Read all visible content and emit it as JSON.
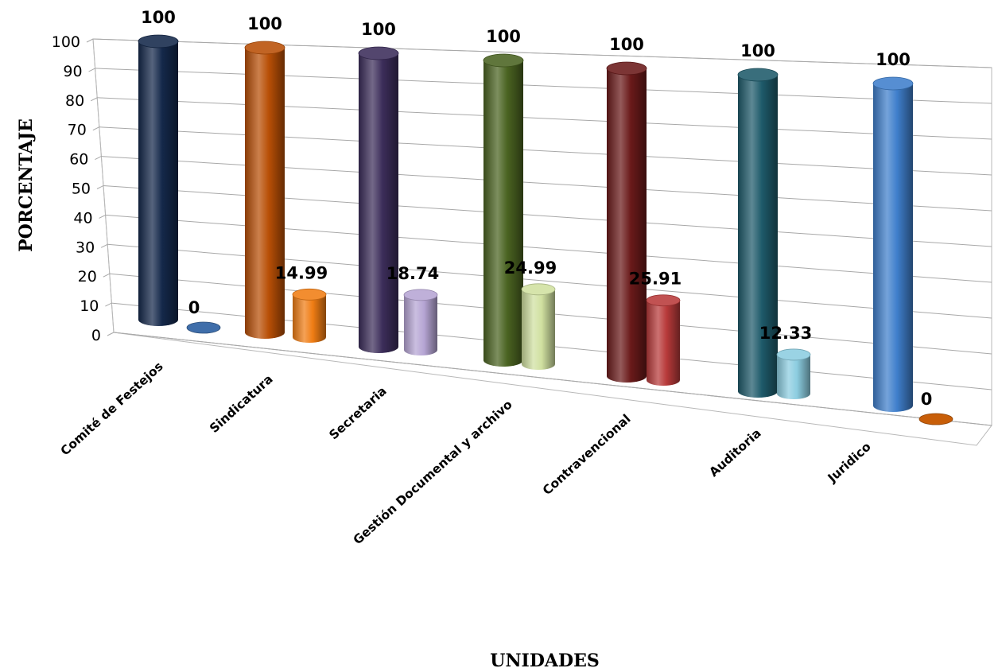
{
  "chart_data": {
    "type": "bar",
    "style": "3d-cylinder",
    "categories": [
      "Comité de Festejos",
      "Sindicatura",
      "Secretaria",
      "Gestión Documental y archivo",
      "Contravencional",
      "Auditoria",
      "Juridico"
    ],
    "series": [
      {
        "values": [
          100,
          100,
          100,
          100,
          100,
          100,
          100
        ],
        "colors": [
          "#14284a",
          "#b84f06",
          "#3c2d5a",
          "#4a6321",
          "#6a1a1a",
          "#1e5a6a",
          "#3f7fcc"
        ]
      },
      {
        "values": [
          0,
          14.99,
          18.74,
          24.99,
          25.91,
          12.33,
          0
        ],
        "colors": [
          "#3f6eaa",
          "#f07d14",
          "#b6a5d4",
          "#d0e0a0",
          "#b83a3a",
          "#8ccde0",
          "#c85e08"
        ]
      }
    ],
    "data_labels": [
      [
        "100",
        "100",
        "100",
        "100",
        "100",
        "100",
        "100"
      ],
      [
        "0",
        "14.99",
        "18.74",
        "24.99",
        "25.91",
        "12.33",
        "0"
      ]
    ],
    "xlabel": "UNIDADES",
    "ylabel": "PORCENTAJE",
    "ylim": [
      0,
      100
    ],
    "yticks": [
      "0",
      "10",
      "20",
      "30",
      "40",
      "50",
      "60",
      "70",
      "80",
      "90",
      "100"
    ],
    "grid": true,
    "legend": "none"
  }
}
